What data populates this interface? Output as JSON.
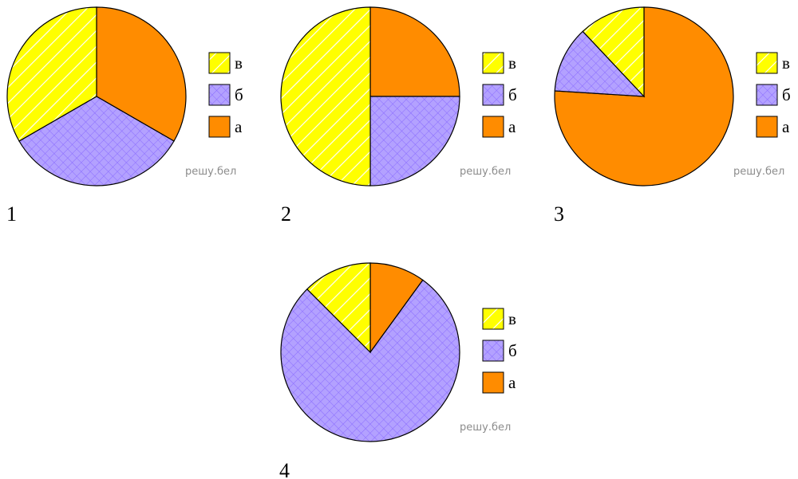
{
  "colors": {
    "a": "#ff8c00",
    "b": "#b3a1ff",
    "c": "#ffff00",
    "outline": "#000000",
    "watermark": "#8c8c8c"
  },
  "chart_data": [
    {
      "type": "pie",
      "number": "1",
      "watermark": "решу.бел",
      "legend": [
        "в",
        "б",
        "а"
      ],
      "slices": [
        {
          "label": "а",
          "value": 33.3,
          "color": "#ff8c00"
        },
        {
          "label": "б",
          "value": 33.3,
          "color": "#b3a1ff"
        },
        {
          "label": "в",
          "value": 33.3,
          "color": "#ffff00"
        }
      ]
    },
    {
      "type": "pie",
      "number": "2",
      "watermark": "решу.бел",
      "legend": [
        "в",
        "б",
        "а"
      ],
      "slices": [
        {
          "label": "а",
          "value": 25,
          "color": "#ff8c00"
        },
        {
          "label": "б",
          "value": 25,
          "color": "#b3a1ff"
        },
        {
          "label": "в",
          "value": 50,
          "color": "#ffff00"
        }
      ]
    },
    {
      "type": "pie",
      "number": "3",
      "watermark": "решу.бел",
      "legend": [
        "в",
        "б",
        "а"
      ],
      "slices": [
        {
          "label": "а",
          "value": 76,
          "color": "#ff8c00"
        },
        {
          "label": "б",
          "value": 12,
          "color": "#b3a1ff"
        },
        {
          "label": "в",
          "value": 12,
          "color": "#ffff00"
        }
      ]
    },
    {
      "type": "pie",
      "number": "4",
      "watermark": "решу.бел",
      "legend": [
        "в",
        "б",
        "а"
      ],
      "slices": [
        {
          "label": "а",
          "value": 10,
          "color": "#ff8c00"
        },
        {
          "label": "б",
          "value": 77.5,
          "color": "#b3a1ff"
        },
        {
          "label": "в",
          "value": 12.5,
          "color": "#ffff00"
        }
      ]
    }
  ]
}
